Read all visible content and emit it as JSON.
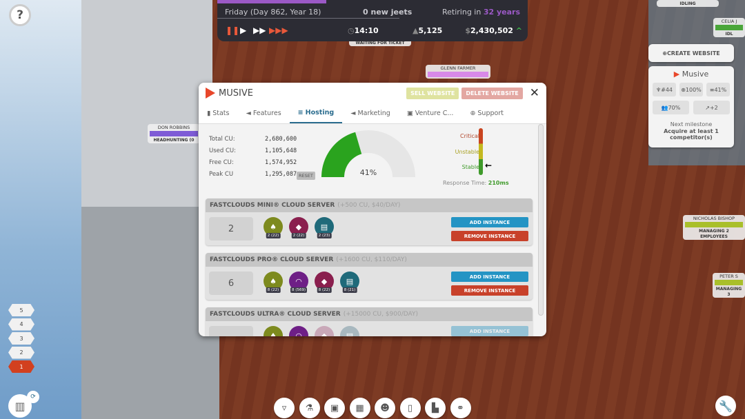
{
  "topbar": {
    "date": "Friday (Day 862, Year 18)",
    "new_jeets": "0 new jeets",
    "retiring_prefix": "Retiring in",
    "retiring_value": "32 years",
    "time": "14:10",
    "followers": "5,125",
    "money": "2,430,502",
    "progress_pct": 35
  },
  "dialog": {
    "title": "MUSIVE",
    "sell": "SELL WEBSITE",
    "delete": "DELETE WEBSITE",
    "tabs": [
      {
        "label": "Stats",
        "icon": "bar-chart-icon"
      },
      {
        "label": "Features",
        "icon": "megaphone-icon"
      },
      {
        "label": "Hosting",
        "icon": "server-icon"
      },
      {
        "label": "Marketing",
        "icon": "megaphone-icon"
      },
      {
        "label": "Venture C...",
        "icon": "money-icon"
      },
      {
        "label": "Support",
        "icon": "lifebuoy-icon"
      }
    ],
    "stats": [
      {
        "label": "Total CU:",
        "value": "2,680,600"
      },
      {
        "label": "Used CU:",
        "value": "1,105,648"
      },
      {
        "label": "Free CU:",
        "value": "1,574,952"
      },
      {
        "label": "Peak CU",
        "value": "1,295,087"
      }
    ],
    "reset": "RESET",
    "gauge": {
      "value": 41,
      "label": "41%",
      "fill": "#2aa31e"
    },
    "status": {
      "critical": "Critical",
      "unstable": "Unstable",
      "stable": "Stable",
      "current": "Stable",
      "response_label": "Response Time:",
      "response_value": "210ms"
    },
    "servers": [
      {
        "name": "FASTCLOUDS MINI® CLOUD SERVER",
        "spec": "(+500 CU, $40/DAY)",
        "count": "2",
        "icons": [
          {
            "name": "leaf-icon",
            "color": "#7d8a1e",
            "badge": "2 (22)"
          },
          {
            "name": "box-icon",
            "color": "#8a1f4e",
            "badge": "2 (22)"
          },
          {
            "name": "notebook-icon",
            "color": "#1f6a7a",
            "badge": "2 (23)"
          }
        ]
      },
      {
        "name": "FASTCLOUDS PRO® CLOUD SERVER",
        "spec": "(+1600 CU, $110/DAY)",
        "count": "6",
        "icons": [
          {
            "name": "leaf-icon",
            "color": "#7d8a1e",
            "badge": "8 (22)"
          },
          {
            "name": "wifi-icon",
            "color": "#6e1f86",
            "badge": "8 (569)"
          },
          {
            "name": "box-icon",
            "color": "#8a1f4e",
            "badge": "8 (22)"
          },
          {
            "name": "notebook-icon",
            "color": "#1f6a7a",
            "badge": "8 (21)"
          }
        ]
      },
      {
        "name": "FASTCLOUDS ULTRA® CLOUD SERVER",
        "spec": "(+15000 CU, $900/DAY)",
        "count": "",
        "icons": [
          {
            "name": "leaf-icon",
            "color": "#7d8a1e"
          },
          {
            "name": "wifi-icon",
            "color": "#6e1f86"
          },
          {
            "name": "box-icon",
            "color": "#c9a8b8"
          },
          {
            "name": "notebook-icon",
            "color": "#a8b8bf"
          }
        ]
      }
    ],
    "add": "ADD INSTANCE",
    "remove": "REMOVE INSTANCE"
  },
  "side": {
    "create": "CREATE WEBSITE",
    "site": "Musive",
    "rank": "#44",
    "support": "100%",
    "hosting": "41%",
    "users": "70%",
    "trend": "+2",
    "milestone_label": "Next milestone",
    "milestone": "Acquire at least 1 competitor(s)"
  },
  "npcs": [
    {
      "name": "DON ROBBINS",
      "task": "HEADHUNTING (0"
    },
    {
      "name": "GLENN FARMER",
      "task": "WAITING FOR TICKET"
    },
    {
      "name": "NICHOLAS BISHOP",
      "task": "MANAGING 2 EMPLOYEES"
    },
    {
      "name": "PETER S",
      "task": "MANAGING 3"
    },
    {
      "name": "CELIA J",
      "task": "IDL"
    },
    {
      "name": "",
      "task": "IDLING"
    }
  ],
  "floors": [
    "5",
    "4",
    "3",
    "2",
    "1"
  ],
  "bottom": [
    "basket-icon",
    "flask-icon",
    "money-icon",
    "grid-icon",
    "team-icon",
    "building-icon",
    "factory-icon",
    "handshake-icon"
  ]
}
